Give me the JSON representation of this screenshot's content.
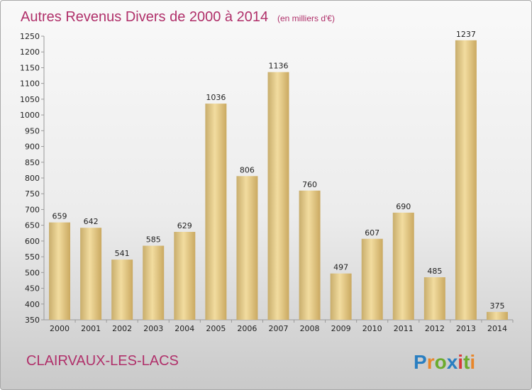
{
  "chart_data": {
    "type": "bar",
    "title": "Autres Revenus Divers de 2000 à 2014",
    "subtitle": "(en milliers d'€)",
    "xlabel": "",
    "ylabel": "",
    "categories": [
      "2000",
      "2001",
      "2002",
      "2003",
      "2004",
      "2005",
      "2006",
      "2007",
      "2008",
      "2009",
      "2010",
      "2011",
      "2012",
      "2013",
      "2014"
    ],
    "values": [
      659,
      642,
      541,
      585,
      629,
      1036,
      806,
      1136,
      760,
      497,
      607,
      690,
      485,
      1237,
      375
    ],
    "ylim": [
      350,
      1250
    ],
    "yticks": [
      350,
      400,
      450,
      500,
      550,
      600,
      650,
      700,
      750,
      800,
      850,
      900,
      950,
      1000,
      1050,
      1100,
      1150,
      1200,
      1250
    ],
    "grid": false,
    "bar_color": "#e3c98a",
    "title_color": "#b0306a"
  },
  "footer": {
    "location": "CLAIRVAUX-LES-LACS",
    "brand": "Proxiti"
  }
}
